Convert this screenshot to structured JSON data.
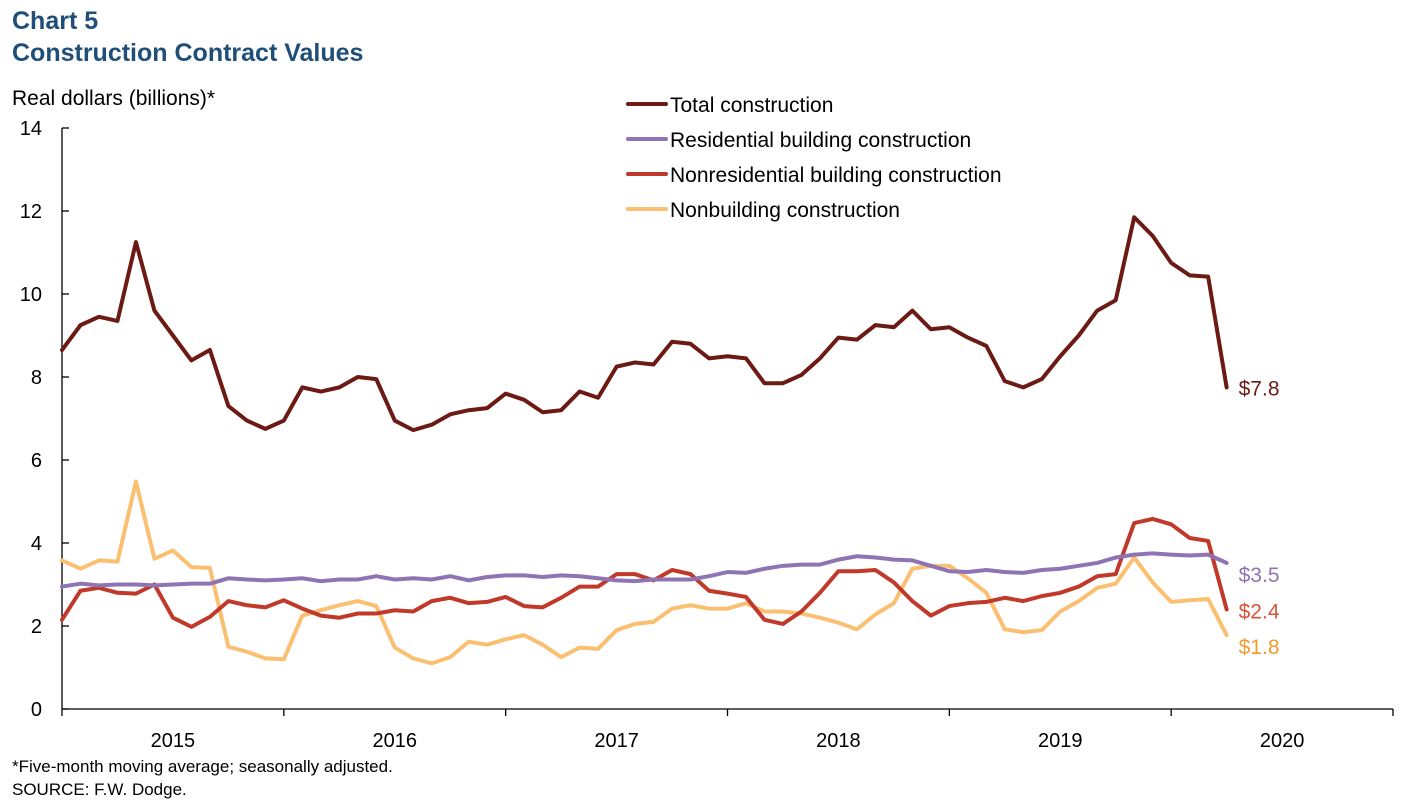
{
  "header": {
    "chart_number": "Chart 5",
    "title": "Construction Contract Values"
  },
  "y_unit_label": "Real dollars (billions)*",
  "footnote": "*Five-month moving average; seasonally adjusted.",
  "source": "SOURCE: F.W. Dodge.",
  "chart_data": {
    "type": "line",
    "title": "Construction Contract Values",
    "ylabel": "Real dollars (billions)*",
    "xlabel": "",
    "ylim": [
      0,
      14
    ],
    "yticks": [
      0,
      2,
      4,
      6,
      8,
      10,
      12,
      14
    ],
    "x_start": "2014-07",
    "xlim_months": [
      0,
      72
    ],
    "year_tick_labels": [
      "2015",
      "2016",
      "2017",
      "2018",
      "2019",
      "2020"
    ],
    "year_label_positions": [
      6,
      18,
      30,
      42,
      54,
      66
    ],
    "grid": false,
    "legend_position": "top-center",
    "series": [
      {
        "name": "Total construction",
        "color": "#6b1a14",
        "end_label": "$7.8",
        "label_color": "#6b1a14",
        "values": [
          8.65,
          9.25,
          9.45,
          9.35,
          11.25,
          9.6,
          9.0,
          8.4,
          8.65,
          7.3,
          6.95,
          6.75,
          6.95,
          7.75,
          7.65,
          7.75,
          8.0,
          7.95,
          6.95,
          6.72,
          6.85,
          7.1,
          7.2,
          7.25,
          7.6,
          7.45,
          7.15,
          7.2,
          7.65,
          7.5,
          8.25,
          8.35,
          8.3,
          8.85,
          8.8,
          8.45,
          8.5,
          8.45,
          7.85,
          7.85,
          8.05,
          8.45,
          8.95,
          8.9,
          9.25,
          9.2,
          9.6,
          9.15,
          9.2,
          8.95,
          8.75,
          7.9,
          7.75,
          7.95,
          8.5,
          9.0,
          9.6,
          9.85,
          11.85,
          11.4,
          10.75,
          10.45,
          10.42,
          7.75
        ]
      },
      {
        "name": "Residential building construction",
        "color": "#8f74b3",
        "end_label": "$3.5",
        "label_color": "#8f74b3",
        "values": [
          2.95,
          3.02,
          2.98,
          3.0,
          3.0,
          2.98,
          3.0,
          3.02,
          3.02,
          3.15,
          3.12,
          3.1,
          3.12,
          3.15,
          3.08,
          3.12,
          3.12,
          3.2,
          3.12,
          3.15,
          3.12,
          3.2,
          3.1,
          3.18,
          3.22,
          3.22,
          3.18,
          3.22,
          3.2,
          3.15,
          3.1,
          3.08,
          3.12,
          3.12,
          3.12,
          3.2,
          3.3,
          3.28,
          3.38,
          3.45,
          3.48,
          3.48,
          3.6,
          3.68,
          3.65,
          3.6,
          3.58,
          3.45,
          3.32,
          3.3,
          3.35,
          3.3,
          3.28,
          3.35,
          3.38,
          3.45,
          3.52,
          3.65,
          3.72,
          3.75,
          3.72,
          3.7,
          3.72,
          3.52
        ]
      },
      {
        "name": "Nonresidential building construction",
        "color": "#c0392b",
        "end_label": "$2.4",
        "label_color": "#d9533a",
        "values": [
          2.15,
          2.85,
          2.92,
          2.8,
          2.78,
          3.0,
          2.2,
          1.98,
          2.22,
          2.6,
          2.5,
          2.45,
          2.62,
          2.42,
          2.25,
          2.2,
          2.3,
          2.3,
          2.38,
          2.35,
          2.6,
          2.68,
          2.55,
          2.58,
          2.7,
          2.48,
          2.45,
          2.68,
          2.95,
          2.95,
          3.25,
          3.25,
          3.1,
          3.35,
          3.25,
          2.85,
          2.78,
          2.7,
          2.15,
          2.05,
          2.35,
          2.8,
          3.32,
          3.32,
          3.35,
          3.05,
          2.6,
          2.25,
          2.48,
          2.55,
          2.58,
          2.68,
          2.6,
          2.72,
          2.8,
          2.95,
          3.2,
          3.25,
          4.48,
          4.58,
          4.45,
          4.12,
          4.05,
          2.4
        ]
      },
      {
        "name": "Nonbuilding construction",
        "color": "#fbbf72",
        "end_label": "$1.8",
        "label_color": "#f29a2e",
        "values": [
          3.58,
          3.38,
          3.58,
          3.55,
          5.48,
          3.62,
          3.82,
          3.42,
          3.4,
          1.5,
          1.38,
          1.22,
          1.2,
          2.25,
          2.38,
          2.5,
          2.6,
          2.48,
          1.48,
          1.22,
          1.1,
          1.25,
          1.62,
          1.55,
          1.68,
          1.78,
          1.55,
          1.25,
          1.48,
          1.45,
          1.9,
          2.05,
          2.1,
          2.42,
          2.5,
          2.42,
          2.42,
          2.55,
          2.35,
          2.35,
          2.3,
          2.2,
          2.08,
          1.92,
          2.28,
          2.55,
          3.38,
          3.45,
          3.45,
          3.15,
          2.8,
          1.92,
          1.85,
          1.9,
          2.35,
          2.6,
          2.92,
          3.02,
          3.65,
          3.05,
          2.58,
          2.62,
          2.65,
          1.78
        ]
      }
    ]
  }
}
